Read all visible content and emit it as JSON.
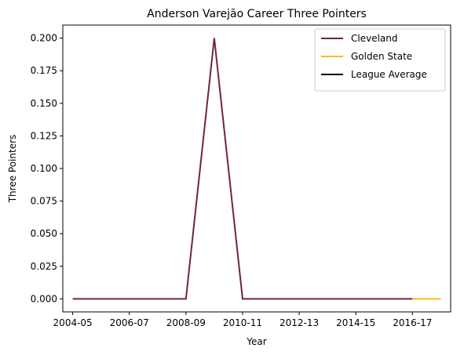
{
  "chart_data": {
    "type": "line",
    "title": "Anderson Varejão Career Three Pointers",
    "xlabel": "Year",
    "ylabel": "Three Pointers",
    "x_ticks": [
      "2004-05",
      "2006-07",
      "2008-09",
      "2010-11",
      "2012-13",
      "2014-15",
      "2016-17"
    ],
    "y_ticks": [
      "0.000",
      "0.025",
      "0.050",
      "0.075",
      "0.100",
      "0.125",
      "0.150",
      "0.175",
      "0.200"
    ],
    "xlim": [
      2003.65,
      2017.35
    ],
    "ylim": [
      -0.01,
      0.21
    ],
    "grid": false,
    "legend_position": "top-right",
    "series": [
      {
        "name": "Cleveland",
        "color": "#6f263d",
        "x": [
          2004,
          2005,
          2006,
          2007,
          2008,
          2009,
          2010,
          2011,
          2012,
          2013,
          2014,
          2015,
          2016
        ],
        "y": [
          0,
          0,
          0,
          0,
          0,
          0.2,
          0,
          0,
          0,
          0,
          0,
          0,
          0
        ]
      },
      {
        "name": "Golden State",
        "color": "#fdb927",
        "x": [
          2016,
          2017
        ],
        "y": [
          0,
          0
        ]
      },
      {
        "name": "League Average",
        "color": "#000000",
        "x": [],
        "y": []
      }
    ]
  }
}
